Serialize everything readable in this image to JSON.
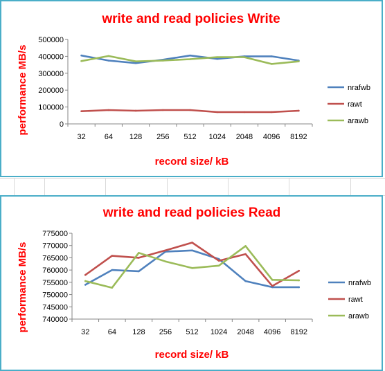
{
  "colors": {
    "border": "#4aaec8",
    "title": "#ff0000",
    "nrafwb": "#4f81bd",
    "rawt": "#c0504d",
    "arawb": "#9bbb59"
  },
  "chart_data": [
    {
      "type": "line",
      "title": "write and read policies Write",
      "xlabel": "record size/ kB",
      "ylabel": "performance MB/s",
      "categories": [
        "32",
        "64",
        "128",
        "256",
        "512",
        "1024",
        "2048",
        "4096",
        "8192"
      ],
      "yticks": [
        "0",
        "100000",
        "200000",
        "300000",
        "400000",
        "500000"
      ],
      "ylim": [
        0,
        500000
      ],
      "grid": false,
      "legend": "right",
      "series": [
        {
          "name": "nrafwb",
          "values": [
            405000,
            375000,
            360000,
            380000,
            405000,
            385000,
            400000,
            400000,
            375000
          ]
        },
        {
          "name": "rawt",
          "values": [
            75000,
            82000,
            78000,
            82000,
            82000,
            70000,
            70000,
            70000,
            78000
          ]
        },
        {
          "name": "arawb",
          "values": [
            372000,
            402000,
            370000,
            375000,
            383000,
            395000,
            395000,
            355000,
            370000
          ]
        }
      ]
    },
    {
      "type": "line",
      "title": "write and read policies  Read",
      "xlabel": "record size/ kB",
      "ylabel": "performance MB/s",
      "categories": [
        "32",
        "64",
        "128",
        "256",
        "512",
        "1024",
        "2048",
        "4096",
        "8192"
      ],
      "yticks": [
        "740000",
        "745000",
        "750000",
        "755000",
        "760000",
        "765000",
        "770000",
        "775000"
      ],
      "ylim": [
        740000,
        775000
      ],
      "grid": false,
      "legend": "right",
      "series": [
        {
          "name": "nrafwb",
          "values": [
            754000,
            760000,
            759500,
            767500,
            768000,
            764500,
            755500,
            753000,
            753000
          ]
        },
        {
          "name": "rawt",
          "values": [
            758000,
            765800,
            765000,
            768000,
            771200,
            763800,
            766500,
            753500,
            759700
          ]
        },
        {
          "name": "arawb",
          "values": [
            755500,
            752800,
            767000,
            763500,
            760800,
            761800,
            769800,
            756000,
            755800
          ]
        }
      ]
    }
  ]
}
